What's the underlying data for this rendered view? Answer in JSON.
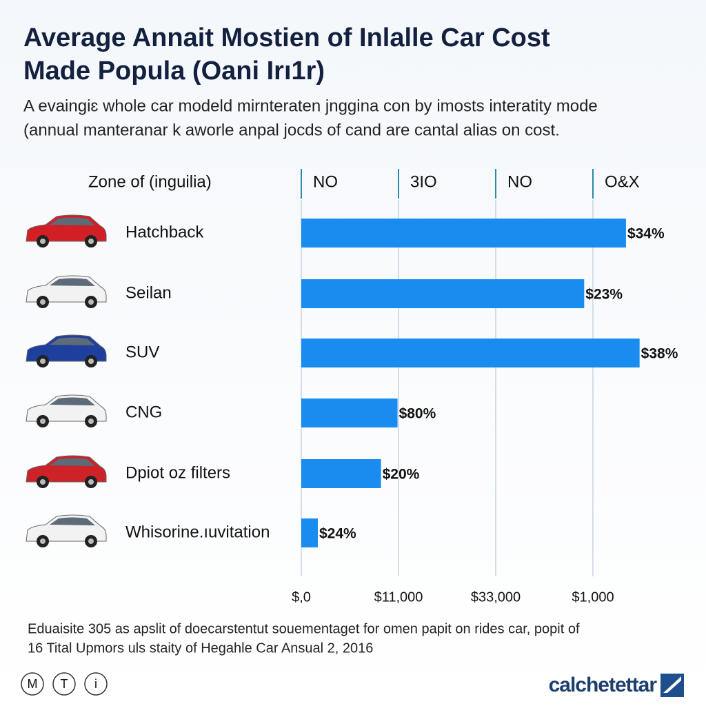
{
  "chart_data": {
    "type": "bar",
    "orientation": "horizontal",
    "title": [
      "Average Annait Mostien of Inlalle Car Cost",
      "Made Popula (Oani Irı1r)"
    ],
    "subtitle": [
      "A evaingiɛ whole car modeld mirnteraten jnggina con by imosts interatity mode",
      "(annual manteranar k aworle anpal jocds of cand are cantal alias on cost."
    ],
    "category_header": "Zone of (inguilia)",
    "column_headers": [
      "NO",
      "3IO",
      "NO",
      "O&X"
    ],
    "categories": [
      "Hatchback",
      "Seilan",
      "SUV",
      "CNG",
      "Dpiot oz filters",
      "Whisorine.ıuvitation"
    ],
    "values": [
      3.34,
      2.91,
      3.48,
      0.99,
      0.82,
      0.17
    ],
    "value_labels": [
      "$34%",
      "$23%",
      "$38%",
      "$80%",
      "$20%",
      "$24%"
    ],
    "color": "#1a8cf0",
    "xlim": [
      0,
      3.6
    ],
    "xticks": [
      {
        "value": 0,
        "label": "$,0"
      },
      {
        "value": 1,
        "label": "$11,000"
      },
      {
        "value": 2,
        "label": "$33,000"
      },
      {
        "value": 3,
        "label": "$1,000"
      }
    ],
    "footnote": [
      "Eduaisite 305 as apslit of doecarstentut souementaget for omen papit on rides car, popit of",
      "16 Tital Upmors uls staity of Hegahle Car Ansual 2, 2016"
    ],
    "footer_icons": [
      "M",
      "T",
      "i"
    ],
    "brand": "calchetettar"
  }
}
